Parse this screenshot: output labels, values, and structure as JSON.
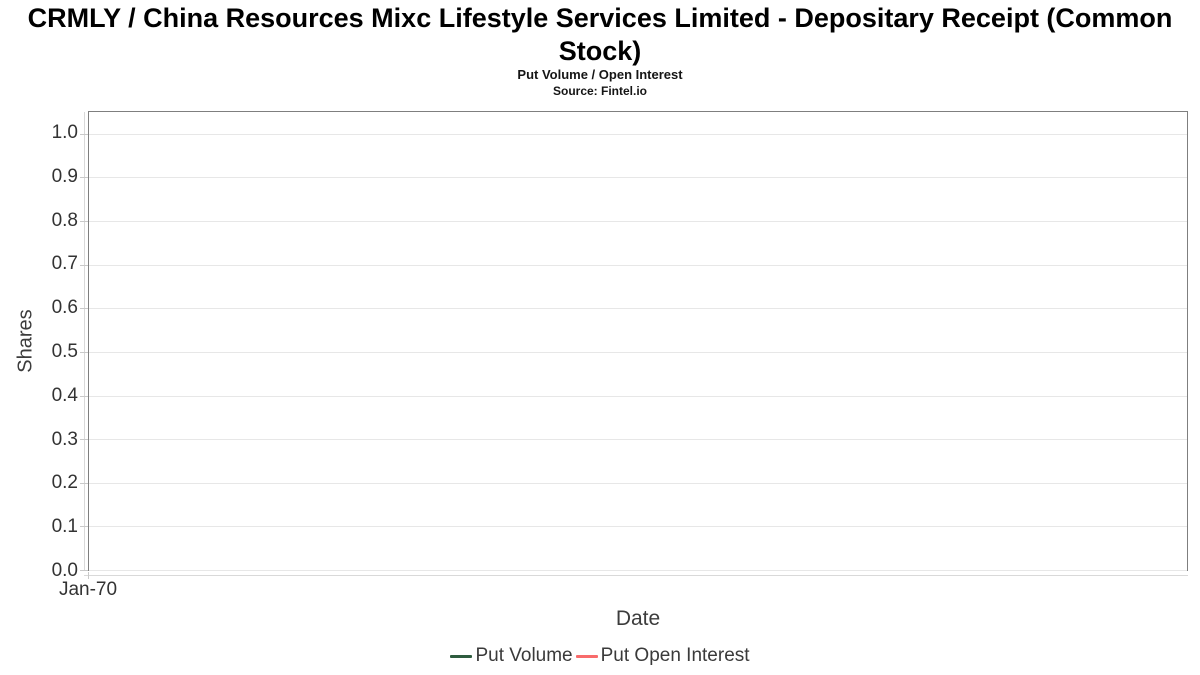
{
  "chart_data": {
    "type": "line",
    "title": "CRMLY / China Resources Mixc Lifestyle Services Limited - Depositary Receipt (Common Stock)",
    "subtitle": "Put Volume / Open Interest",
    "source": "Source: Fintel.io",
    "xlabel": "Date",
    "ylabel": "Shares",
    "ylim": [
      0,
      1.05
    ],
    "yticks": [
      0.0,
      0.1,
      0.2,
      0.3,
      0.4,
      0.5,
      0.6,
      0.7,
      0.8,
      0.9,
      1.0
    ],
    "ytick_decimals": 1,
    "xticks": [
      {
        "label": "Jan-70",
        "pos": 0
      }
    ],
    "grid": true,
    "legend_position": "bottom",
    "series": [
      {
        "name": "Put Volume",
        "color": "#2e5c3f",
        "x": [],
        "values": []
      },
      {
        "name": "Put Open Interest",
        "color": "#f86b6b",
        "x": [],
        "values": []
      }
    ]
  },
  "colors": {
    "grid": "#e7e7e7",
    "plot_border": "#7f7f7f",
    "tick": "#c9c9c9",
    "axis_line": "#d9d9d9"
  }
}
